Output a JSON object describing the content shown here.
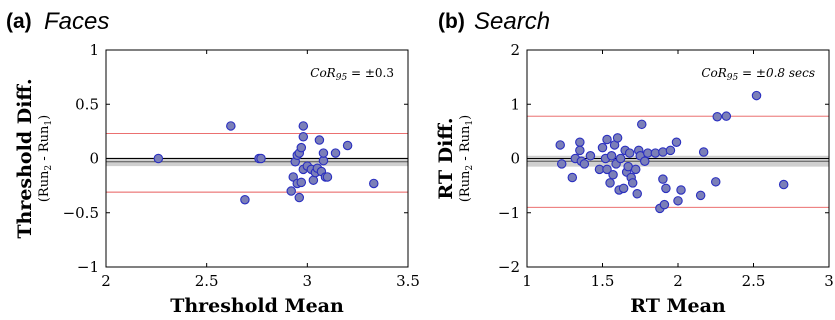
{
  "chart_data": [
    {
      "type": "scatter",
      "panel_label": "(a)",
      "panel_name": "Faces",
      "xlabel": "Threshold Mean",
      "ylabel": "Threshold Diff.",
      "ylabel_sub": "(Run",
      "ylabel_sub_1": "2",
      "ylabel_sub_2": " - Run",
      "ylabel_sub_3": "1",
      "ylabel_sub_4": ")",
      "annotation": "CoR",
      "annotation_sub": "95",
      "annotation_value": " = ±0.3",
      "xlim": [
        2,
        3.5
      ],
      "ylim": [
        -1,
        1
      ],
      "xticks": [
        "2",
        "2.5",
        "3",
        "3.5"
      ],
      "yticks": [
        "−1",
        "−0.5",
        "0",
        "0.5",
        "1"
      ],
      "xtick_values": [
        2,
        2.5,
        3,
        3.5
      ],
      "ytick_values": [
        -1,
        -0.5,
        0,
        0.5,
        1
      ],
      "bias": -0.03,
      "bias_band": [
        -0.07,
        0.01
      ],
      "loa_upper": 0.23,
      "loa_lower": -0.31,
      "grid": false,
      "colors": {
        "point_fill": "#7b7fb8",
        "point_edge": "#2a2fc0",
        "limit_line": "#e85b5b",
        "band": "#cfcfcf",
        "mean_line": "#555555"
      },
      "points": [
        {
          "x": 2.26,
          "y": 0.0
        },
        {
          "x": 2.62,
          "y": 0.3
        },
        {
          "x": 2.69,
          "y": -0.38
        },
        {
          "x": 2.76,
          "y": 0.0
        },
        {
          "x": 2.77,
          "y": 0.0
        },
        {
          "x": 2.92,
          "y": -0.3
        },
        {
          "x": 2.93,
          "y": -0.17
        },
        {
          "x": 2.94,
          "y": -0.03
        },
        {
          "x": 2.95,
          "y": -0.23
        },
        {
          "x": 2.95,
          "y": 0.03
        },
        {
          "x": 2.96,
          "y": -0.36
        },
        {
          "x": 2.96,
          "y": 0.05
        },
        {
          "x": 2.97,
          "y": 0.1
        },
        {
          "x": 2.97,
          "y": -0.22
        },
        {
          "x": 2.98,
          "y": -0.1
        },
        {
          "x": 2.98,
          "y": 0.3
        },
        {
          "x": 2.98,
          "y": 0.2
        },
        {
          "x": 3.0,
          "y": -0.07
        },
        {
          "x": 3.02,
          "y": -0.1
        },
        {
          "x": 3.03,
          "y": -0.2
        },
        {
          "x": 3.04,
          "y": -0.13
        },
        {
          "x": 3.05,
          "y": -0.09
        },
        {
          "x": 3.06,
          "y": 0.17
        },
        {
          "x": 3.07,
          "y": -0.12
        },
        {
          "x": 3.08,
          "y": -0.02
        },
        {
          "x": 3.08,
          "y": 0.05
        },
        {
          "x": 3.09,
          "y": -0.17
        },
        {
          "x": 3.1,
          "y": -0.17
        },
        {
          "x": 3.14,
          "y": 0.05
        },
        {
          "x": 3.2,
          "y": 0.12
        },
        {
          "x": 3.33,
          "y": -0.23
        }
      ]
    },
    {
      "type": "scatter",
      "panel_label": "(b)",
      "panel_name": "Search",
      "xlabel": "RT Mean",
      "ylabel": "RT Diff.",
      "ylabel_sub": "(Run",
      "ylabel_sub_1": "2",
      "ylabel_sub_2": " - Run",
      "ylabel_sub_3": "1",
      "ylabel_sub_4": ")",
      "annotation": "CoR",
      "annotation_sub": "95",
      "annotation_value": " = ±0.8 secs",
      "xlim": [
        1,
        3
      ],
      "ylim": [
        -2,
        2
      ],
      "xticks": [
        "1",
        "1.5",
        "2",
        "2.5",
        "3"
      ],
      "yticks": [
        "−2",
        "−1",
        "0",
        "1",
        "2"
      ],
      "xtick_values": [
        1,
        1.5,
        2,
        2.5,
        3
      ],
      "ytick_values": [
        -2,
        -1,
        0,
        1,
        2
      ],
      "bias": -0.05,
      "bias_band": [
        -0.15,
        0.05
      ],
      "loa_upper": 0.78,
      "loa_lower": -0.9,
      "grid": false,
      "colors": {
        "point_fill": "#7b7fb8",
        "point_edge": "#2a2fc0",
        "limit_line": "#e85b5b",
        "band": "#cfcfcf",
        "mean_line": "#555555"
      },
      "points": [
        {
          "x": 1.22,
          "y": 0.25
        },
        {
          "x": 1.23,
          "y": -0.1
        },
        {
          "x": 1.3,
          "y": -0.35
        },
        {
          "x": 1.32,
          "y": 0.0
        },
        {
          "x": 1.35,
          "y": 0.3
        },
        {
          "x": 1.35,
          "y": 0.15
        },
        {
          "x": 1.36,
          "y": -0.05
        },
        {
          "x": 1.38,
          "y": -0.1
        },
        {
          "x": 1.42,
          "y": 0.05
        },
        {
          "x": 1.48,
          "y": -0.2
        },
        {
          "x": 1.5,
          "y": 0.2
        },
        {
          "x": 1.52,
          "y": 0.0
        },
        {
          "x": 1.53,
          "y": -0.2
        },
        {
          "x": 1.53,
          "y": 0.35
        },
        {
          "x": 1.55,
          "y": -0.45
        },
        {
          "x": 1.56,
          "y": 0.05
        },
        {
          "x": 1.57,
          "y": -0.3
        },
        {
          "x": 1.58,
          "y": 0.25
        },
        {
          "x": 1.59,
          "y": -0.1
        },
        {
          "x": 1.6,
          "y": 0.38
        },
        {
          "x": 1.61,
          "y": -0.58
        },
        {
          "x": 1.62,
          "y": 0.0
        },
        {
          "x": 1.64,
          "y": -0.55
        },
        {
          "x": 1.65,
          "y": 0.15
        },
        {
          "x": 1.66,
          "y": -0.25
        },
        {
          "x": 1.67,
          "y": -0.15
        },
        {
          "x": 1.68,
          "y": 0.1
        },
        {
          "x": 1.69,
          "y": -0.35
        },
        {
          "x": 1.7,
          "y": -0.45
        },
        {
          "x": 1.72,
          "y": -0.2
        },
        {
          "x": 1.73,
          "y": -0.65
        },
        {
          "x": 1.74,
          "y": 0.15
        },
        {
          "x": 1.75,
          "y": 0.05
        },
        {
          "x": 1.76,
          "y": 0.63
        },
        {
          "x": 1.78,
          "y": -0.05
        },
        {
          "x": 1.8,
          "y": 0.1
        },
        {
          "x": 1.85,
          "y": 0.1
        },
        {
          "x": 1.88,
          "y": -0.92
        },
        {
          "x": 1.9,
          "y": -0.38
        },
        {
          "x": 1.9,
          "y": 0.12
        },
        {
          "x": 1.91,
          "y": -0.85
        },
        {
          "x": 1.92,
          "y": -0.55
        },
        {
          "x": 1.95,
          "y": 0.15
        },
        {
          "x": 1.99,
          "y": 0.3
        },
        {
          "x": 2.0,
          "y": -0.78
        },
        {
          "x": 2.02,
          "y": -0.58
        },
        {
          "x": 2.15,
          "y": -0.68
        },
        {
          "x": 2.17,
          "y": 0.12
        },
        {
          "x": 2.25,
          "y": -0.43
        },
        {
          "x": 2.26,
          "y": 0.77
        },
        {
          "x": 2.32,
          "y": 0.78
        },
        {
          "x": 2.52,
          "y": 1.16
        },
        {
          "x": 2.7,
          "y": -0.48
        }
      ]
    }
  ]
}
